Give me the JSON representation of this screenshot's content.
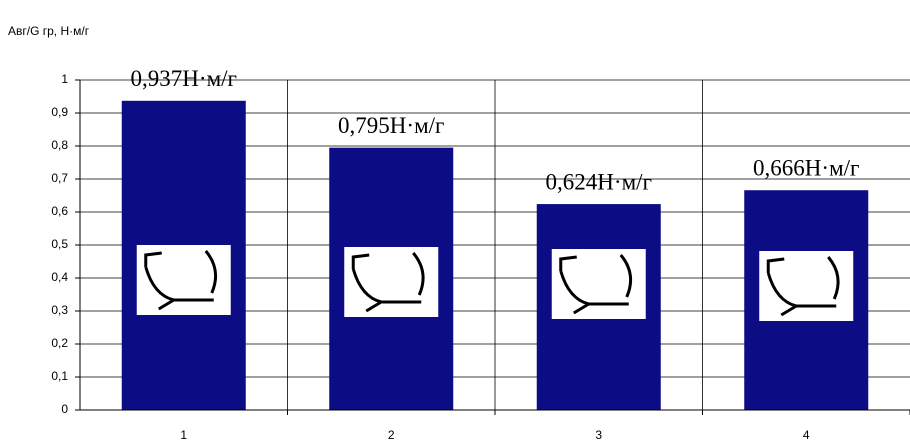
{
  "chart_data": {
    "type": "bar",
    "y_label": "Aвг/G гр, Н·м/г",
    "categories": [
      "1",
      "2",
      "3",
      "4"
    ],
    "values": [
      0.937,
      0.795,
      0.624,
      0.666
    ],
    "value_labels": [
      "0,937Н·м/г",
      "0,795Н·м/г",
      "0,624Н·м/г",
      "0,666Н·м/г"
    ],
    "color": "#0c0c84",
    "ylim": [
      0,
      1
    ],
    "yticks": [
      0,
      {
        "value": 0.1,
        "label": "0,1"
      },
      {
        "value": 0.2,
        "label": "0,2"
      },
      {
        "value": 0.3,
        "label": "0,3"
      },
      {
        "value": 0.4,
        "label": "0,4"
      },
      {
        "value": 0.5,
        "label": "0,5"
      },
      {
        "value": 0.6,
        "label": "0,6"
      },
      {
        "value": 0.7,
        "label": "0,7"
      },
      {
        "value": 0.8,
        "label": "0,8"
      },
      {
        "value": 0.9,
        "label": "0,9"
      },
      1
    ],
    "grid": true
  }
}
